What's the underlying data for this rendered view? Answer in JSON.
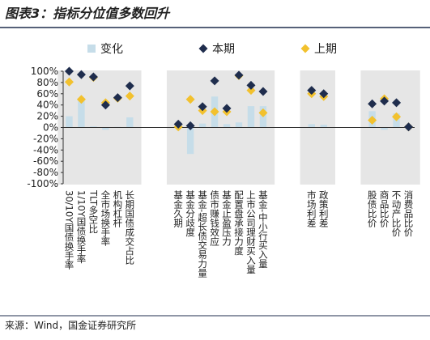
{
  "chart_data": {
    "type": "bar-dot",
    "title": "图表3：指标分位值多数回升",
    "source": "来源：Wind，国金证券研究所",
    "categories": [
      "30/10Y国债换手率",
      "1/10Y国债换手率",
      "TLT多空比",
      "全市场换手率",
      "机构杠杆",
      "长期国债成交占比",
      null,
      null,
      null,
      "基金久期",
      "基金分歧度",
      "基金-超长债交易力量",
      "债市赚钱效应",
      "基金止盈压力",
      "配置盘承接力度",
      "上市公司理财买入量",
      "基金-中小行买入量",
      null,
      null,
      null,
      "市场利差",
      "政策利差",
      null,
      null,
      null,
      "股债比价",
      "商品比价",
      "不动产比价",
      "消费品比价"
    ],
    "series": [
      {
        "name": "变化",
        "color": "#c6dde9",
        "values": [
          20,
          48,
          2,
          -4,
          1,
          18,
          null,
          null,
          null,
          5,
          -47,
          7,
          55,
          6,
          9,
          38,
          38,
          null,
          null,
          null,
          6,
          5,
          null,
          null,
          null,
          29,
          -4,
          25,
          0
        ]
      },
      {
        "name": "本期",
        "color": "#1f2d4d",
        "values": [
          100,
          94,
          90,
          40,
          53,
          74,
          null,
          null,
          null,
          6,
          3,
          37,
          83,
          34,
          93,
          75,
          64,
          null,
          null,
          null,
          66,
          60,
          null,
          null,
          null,
          42,
          47,
          44,
          1
        ]
      },
      {
        "name": "上期",
        "color": "#f2c12e",
        "values": [
          81,
          50,
          89,
          44,
          52,
          56,
          null,
          null,
          null,
          1,
          50,
          30,
          28,
          28,
          92,
          66,
          26,
          null,
          null,
          null,
          60,
          55,
          null,
          null,
          null,
          13,
          51,
          19,
          1
        ]
      }
    ],
    "ylim": [
      -100,
      100
    ],
    "yticks": [
      {
        "value": -100,
        "label": "-100%"
      },
      {
        "value": -80,
        "label": "-80%"
      },
      {
        "value": -60,
        "label": "-60%"
      },
      {
        "value": -40,
        "label": "-40%"
      },
      {
        "value": -20,
        "label": "-20%"
      },
      {
        "value": 0,
        "label": "0%"
      },
      {
        "value": 20,
        "label": "20%"
      },
      {
        "value": 40,
        "label": "40%"
      },
      {
        "value": 60,
        "label": "60%"
      },
      {
        "value": 80,
        "label": "80%"
      },
      {
        "value": 100,
        "label": "100%"
      }
    ]
  }
}
